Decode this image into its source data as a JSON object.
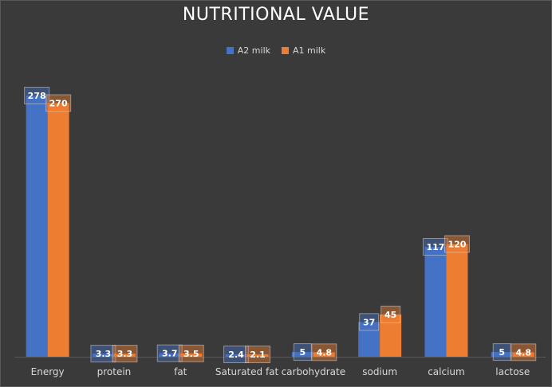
{
  "chart_data": {
    "type": "bar",
    "title": "NUTRITIONAL VALUE",
    "categories": [
      "Energy",
      "protein",
      "fat",
      "Saturated fat",
      "carbohydrate",
      "sodium",
      "calcium",
      "lactose"
    ],
    "series": [
      {
        "name": "A2 milk",
        "color": "#4472c4",
        "values": [
          278,
          3.3,
          3.7,
          2.4,
          5,
          37,
          117,
          5
        ],
        "labels": [
          "278",
          "3.3",
          "3.7",
          "2.4",
          "5",
          "37",
          "117",
          "5"
        ]
      },
      {
        "name": "A1 milk",
        "color": "#ed7d31",
        "values": [
          270,
          3.3,
          3.5,
          2.1,
          4.8,
          45,
          120,
          4.8
        ],
        "labels": [
          "270",
          "3.3",
          "3.5",
          "2.1",
          "4.8",
          "45",
          "120",
          "4.8"
        ]
      }
    ],
    "ylim": [
      0,
      300
    ],
    "legend_position": "top",
    "grid": false
  }
}
